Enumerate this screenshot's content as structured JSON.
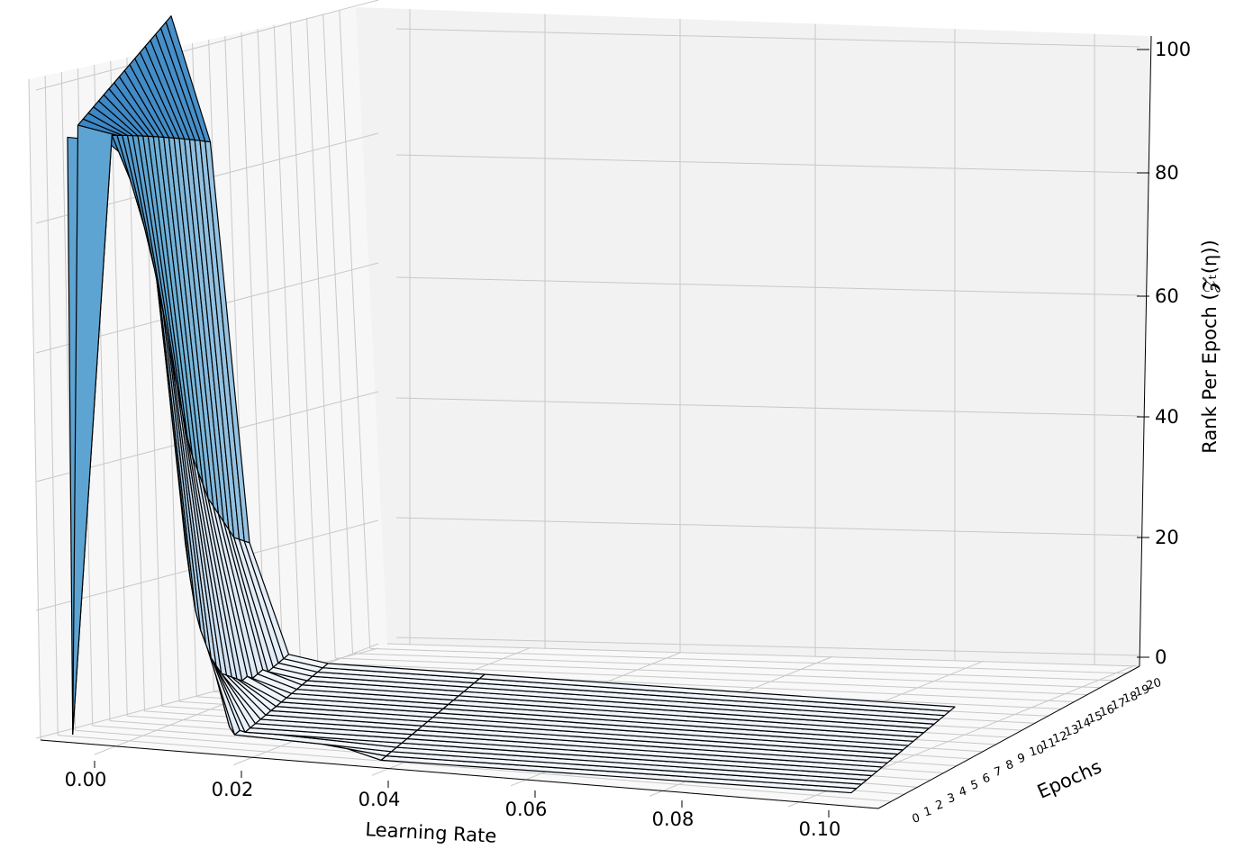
{
  "chart_data": {
    "type": "surface3d",
    "title": "",
    "xlabel": "Learning Rate",
    "ylabel": "Epochs",
    "zlabel": "Rank Per Epoch (𝓩ₜ(η))",
    "xlim": [
      0.0,
      0.1
    ],
    "ylim": [
      0,
      20
    ],
    "zlim": [
      0,
      100
    ],
    "x_ticks": [
      "0.00",
      "0.02",
      "0.04",
      "0.06",
      "0.08",
      "0.10"
    ],
    "y_ticks": [
      "0",
      "1",
      "2",
      "3",
      "4",
      "5",
      "6",
      "7",
      "8",
      "9",
      "10",
      "11",
      "12",
      "13",
      "14",
      "15",
      "16",
      "17",
      "18",
      "19",
      "20"
    ],
    "z_ticks": [
      "0",
      "20",
      "40",
      "60",
      "80",
      "100"
    ],
    "grid": true,
    "colormap": [
      "#f3f7fd",
      "#c7dbef",
      "#6aaed6",
      "#3a85c4"
    ],
    "edge_color": "#000000",
    "learning_rates": [
      0.0,
      0.005,
      0.01,
      0.015,
      0.02,
      0.04,
      0.1
    ],
    "epochs": [
      0,
      1,
      2,
      3,
      4,
      5,
      6,
      7,
      8,
      9,
      10,
      11,
      12,
      13,
      14,
      15,
      16,
      17,
      18,
      19,
      20
    ],
    "z": [
      [
        100,
        1,
        100,
        100,
        100,
        100,
        100,
        100,
        100,
        100,
        100,
        100,
        100,
        100,
        100,
        100,
        100,
        100,
        100,
        100,
        100
      ],
      [
        100,
        100,
        99,
        98,
        97,
        96,
        95,
        94,
        93,
        92,
        91,
        90,
        89,
        88,
        87,
        86,
        85,
        84,
        83,
        82,
        81
      ],
      [
        95,
        85,
        78,
        72,
        66,
        60,
        55,
        50,
        45,
        41,
        38,
        35,
        32,
        30,
        28,
        26,
        24,
        22,
        21,
        20,
        19
      ],
      [
        35,
        28,
        22,
        18,
        15,
        12,
        10,
        8,
        7,
        6,
        5,
        4,
        4,
        3,
        3,
        3,
        2,
        2,
        2,
        2,
        2
      ],
      [
        8,
        4,
        2,
        2,
        1,
        1,
        1,
        1,
        1,
        1,
        1,
        1,
        1,
        1,
        1,
        1,
        1,
        1,
        1,
        1,
        1
      ],
      [
        1,
        1,
        1,
        1,
        1,
        1,
        1,
        1,
        1,
        1,
        1,
        1,
        1,
        1,
        1,
        1,
        1,
        1,
        1,
        1,
        1
      ],
      [
        1,
        1,
        1,
        1,
        1,
        1,
        1,
        1,
        1,
        1,
        1,
        1,
        1,
        1,
        1,
        1,
        1,
        1,
        1,
        1,
        1
      ]
    ]
  }
}
